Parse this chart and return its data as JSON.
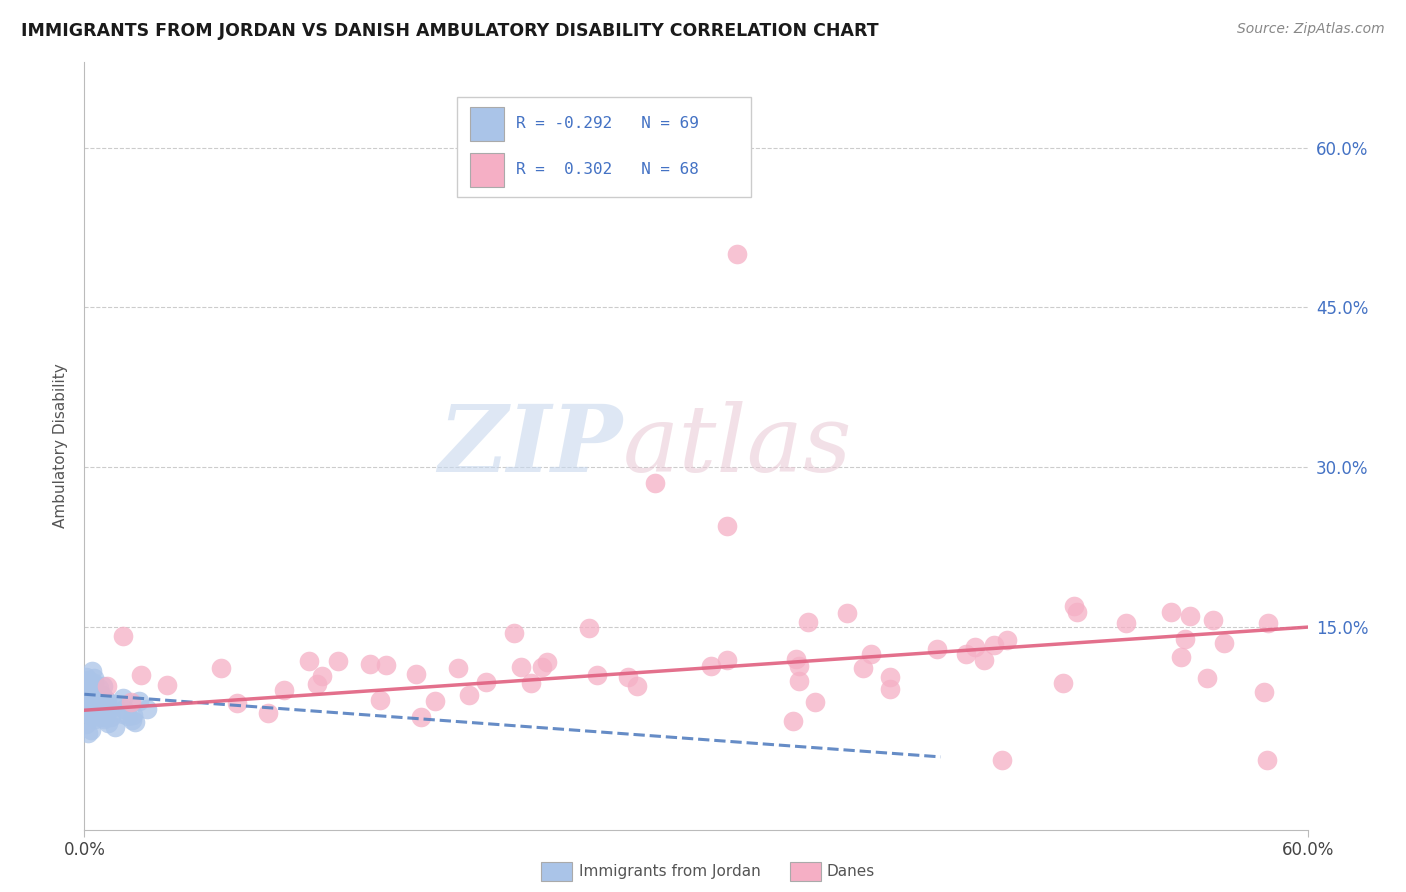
{
  "title": "IMMIGRANTS FROM JORDAN VS DANISH AMBULATORY DISABILITY CORRELATION CHART",
  "source": "Source: ZipAtlas.com",
  "ylabel": "Ambulatory Disability",
  "legend_label1": "Immigrants from Jordan",
  "legend_label2": "Danes",
  "R1": -0.292,
  "N1": 69,
  "R2": 0.302,
  "N2": 68,
  "color_jordan": "#aac4e8",
  "color_danes": "#f5afc5",
  "color_jordan_line": "#5580c0",
  "color_danes_line": "#e06080",
  "right_yticks": [
    "60.0%",
    "45.0%",
    "30.0%",
    "15.0%"
  ],
  "right_ytick_vals": [
    0.6,
    0.45,
    0.3,
    0.15
  ],
  "xmax": 0.6,
  "ymin": -0.04,
  "ymax": 0.68,
  "watermark_zip": "ZIP",
  "watermark_atlas": "atlas"
}
